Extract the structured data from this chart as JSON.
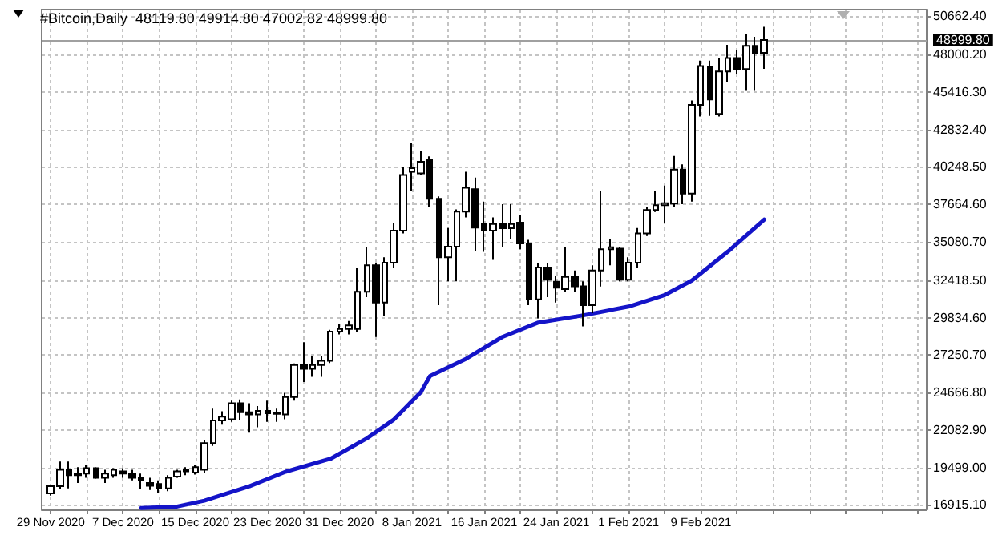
{
  "chart_data": {
    "type": "candlestick",
    "title": "#Bitcoin,Daily  48119.80 49914.80 47002.82 48999.80",
    "xlim": [
      "2020-11-28",
      "2021-03-06"
    ],
    "xticks": [
      {
        "value": "2020-11-29",
        "label": "29 Nov 2020"
      },
      {
        "value": "2020-12-03",
        "label": null
      },
      {
        "value": "2020-12-07",
        "label": "7 Dec 2020"
      },
      {
        "value": "2020-12-11",
        "label": null
      },
      {
        "value": "2020-12-15",
        "label": "15 Dec 2020"
      },
      {
        "value": "2020-12-19",
        "label": null
      },
      {
        "value": "2020-12-23",
        "label": "23 Dec 2020"
      },
      {
        "value": "2020-12-27",
        "label": null
      },
      {
        "value": "2020-12-31",
        "label": "31 Dec 2020"
      },
      {
        "value": "2021-01-04",
        "label": null
      },
      {
        "value": "2021-01-08",
        "label": "8 Jan 2021"
      },
      {
        "value": "2021-01-12",
        "label": null
      },
      {
        "value": "2021-01-16",
        "label": "16 Jan 2021"
      },
      {
        "value": "2021-01-20",
        "label": null
      },
      {
        "value": "2021-01-24",
        "label": "24 Jan 2021"
      },
      {
        "value": "2021-01-28",
        "label": null
      },
      {
        "value": "2021-02-01",
        "label": "1 Feb 2021"
      },
      {
        "value": "2021-02-05",
        "label": null
      },
      {
        "value": "2021-02-09",
        "label": "9 Feb 2021"
      },
      {
        "value": "2021-02-13",
        "label": null
      },
      {
        "value": "2021-02-17",
        "label": null
      },
      {
        "value": "2021-02-21",
        "label": null
      },
      {
        "value": "2021-02-25",
        "label": null
      },
      {
        "value": "2021-03-01",
        "label": null
      },
      {
        "value": "2021-03-05",
        "label": null
      }
    ],
    "ylim": [
      16600,
      51100
    ],
    "yticks": [
      {
        "value": 16915.1,
        "label": "16915.10"
      },
      {
        "value": 19499,
        "label": "19499.00"
      },
      {
        "value": 22082.9,
        "label": "22082.90"
      },
      {
        "value": 24666.8,
        "label": "24666.80"
      },
      {
        "value": 27250.7,
        "label": "27250.70"
      },
      {
        "value": 29834.6,
        "label": "29834.60"
      },
      {
        "value": 32418.5,
        "label": "32418.50"
      },
      {
        "value": 35080.7,
        "label": "35080.70"
      },
      {
        "value": 37664.6,
        "label": "37664.60"
      },
      {
        "value": 40248.5,
        "label": "40248.50"
      },
      {
        "value": 42832.4,
        "label": "42832.40"
      },
      {
        "value": 45416.3,
        "label": "45416.30"
      },
      {
        "value": 48000.2,
        "label": "48000.20"
      },
      {
        "value": 50662.4,
        "label": "50662.40"
      }
    ],
    "grid": true,
    "ref_lines": [
      {
        "axis": "y",
        "value": 48999.8,
        "label": "48999.80",
        "color": "#a0a0a0"
      }
    ],
    "series": [
      {
        "type": "line",
        "color": "#1414c8",
        "x": [
          "2020-12-09",
          "2020-12-13",
          "2020-12-16",
          "2020-12-21",
          "2020-12-25",
          "2020-12-30",
          "2021-01-03",
          "2021-01-06",
          "2021-01-09",
          "2021-01-10",
          "2021-01-14",
          "2021-01-18",
          "2021-01-22",
          "2021-01-27",
          "2021-02-01",
          "2021-02-05",
          "2021-02-08",
          "2021-02-12",
          "2021-02-16"
        ],
        "values": [
          16700,
          16800,
          17200,
          18200,
          19200,
          20100,
          21500,
          22800,
          24700,
          25800,
          27000,
          28500,
          29500,
          30000,
          30600,
          31400,
          32400,
          34400,
          36600
        ]
      },
      {
        "type": "candlestick",
        "color": "#000000",
        "x": [
          "2020-11-29",
          "2020-11-30",
          "2020-12-01",
          "2020-12-02",
          "2020-12-03",
          "2020-12-04",
          "2020-12-05",
          "2020-12-06",
          "2020-12-07",
          "2020-12-08",
          "2020-12-09",
          "2020-12-10",
          "2020-12-11",
          "2020-12-12",
          "2020-12-13",
          "2020-12-14",
          "2020-12-15",
          "2020-12-16",
          "2020-12-17",
          "2020-12-18",
          "2020-12-19",
          "2020-12-20",
          "2020-12-21",
          "2020-12-22",
          "2020-12-23",
          "2020-12-24",
          "2020-12-25",
          "2020-12-26",
          "2020-12-27",
          "2020-12-28",
          "2020-12-29",
          "2020-12-30",
          "2020-12-31",
          "2021-01-01",
          "2021-01-02",
          "2021-01-03",
          "2021-01-04",
          "2021-01-05",
          "2021-01-06",
          "2021-01-07",
          "2021-01-08",
          "2021-01-09",
          "2021-01-10",
          "2021-01-11",
          "2021-01-12",
          "2021-01-13",
          "2021-01-14",
          "2021-01-15",
          "2021-01-16",
          "2021-01-17",
          "2021-01-18",
          "2021-01-19",
          "2021-01-20",
          "2021-01-21",
          "2021-01-22",
          "2021-01-23",
          "2021-01-24",
          "2021-01-25",
          "2021-01-26",
          "2021-01-27",
          "2021-01-28",
          "2021-01-29",
          "2021-01-30",
          "2021-01-31",
          "2021-02-01",
          "2021-02-02",
          "2021-02-03",
          "2021-02-04",
          "2021-02-05",
          "2021-02-06",
          "2021-02-07",
          "2021-02-08",
          "2021-02-09",
          "2021-02-10",
          "2021-02-11",
          "2021-02-12",
          "2021-02-13",
          "2021-02-14",
          "2021-02-15",
          "2021-02-16"
        ],
        "ohlc": [
          [
            17700,
            18300,
            17550,
            18200
          ],
          [
            18200,
            19900,
            18000,
            19330
          ],
          [
            19330,
            19900,
            18050,
            18970
          ],
          [
            19050,
            19520,
            18420,
            18970
          ],
          [
            19080,
            19700,
            18785,
            19450
          ],
          [
            19450,
            19520,
            18710,
            18785
          ],
          [
            18785,
            19335,
            18420,
            19080
          ],
          [
            18970,
            19450,
            18785,
            19330
          ],
          [
            19220,
            19450,
            18785,
            19080
          ],
          [
            19080,
            19335,
            18600,
            18785
          ],
          [
            18785,
            19080,
            17980,
            18600
          ],
          [
            18420,
            18785,
            17940,
            18235
          ],
          [
            18350,
            18600,
            17765,
            18050
          ],
          [
            18050,
            18970,
            17860,
            18785
          ],
          [
            18860,
            19330,
            18785,
            19220
          ],
          [
            19220,
            19520,
            18970,
            19330
          ],
          [
            19150,
            19700,
            19000,
            19520
          ],
          [
            19335,
            21350,
            19150,
            21170
          ],
          [
            21170,
            23550,
            20985,
            22740
          ],
          [
            22740,
            23370,
            22450,
            23000
          ],
          [
            22820,
            24100,
            22635,
            23920
          ],
          [
            23920,
            24190,
            22735,
            23300
          ],
          [
            23300,
            23920,
            21900,
            23150
          ],
          [
            23150,
            23735,
            22270,
            23400
          ],
          [
            23400,
            24100,
            22635,
            23230
          ],
          [
            23230,
            23550,
            22635,
            23200
          ],
          [
            23150,
            24650,
            22820,
            24360
          ],
          [
            24360,
            26670,
            24100,
            26560
          ],
          [
            26560,
            28135,
            25385,
            26300
          ],
          [
            26300,
            27220,
            25750,
            26560
          ],
          [
            26560,
            27220,
            25750,
            26860
          ],
          [
            26850,
            29000,
            26700,
            28870
          ],
          [
            28870,
            29420,
            28685,
            29050
          ],
          [
            29050,
            29600,
            28685,
            29300
          ],
          [
            29050,
            33270,
            28870,
            31620
          ],
          [
            31620,
            34735,
            31250,
            33450
          ],
          [
            33450,
            33635,
            28500,
            30885
          ],
          [
            30885,
            34000,
            29970,
            33635
          ],
          [
            33635,
            36385,
            33270,
            35835
          ],
          [
            35835,
            40235,
            35650,
            39685
          ],
          [
            39900,
            41885,
            38585,
            40150
          ],
          [
            39800,
            41335,
            39685,
            40600
          ],
          [
            40700,
            40970,
            37485,
            38035
          ],
          [
            38035,
            38200,
            30700,
            34000
          ],
          [
            34000,
            36020,
            32350,
            34735
          ],
          [
            34735,
            37300,
            32350,
            37150
          ],
          [
            37150,
            39900,
            36750,
            38800
          ],
          [
            38700,
            39500,
            34400,
            36050
          ],
          [
            36300,
            37850,
            34370,
            35835
          ],
          [
            35835,
            36750,
            33820,
            36300
          ],
          [
            36300,
            37670,
            34735,
            36000
          ],
          [
            36000,
            37670,
            35285,
            36300
          ],
          [
            36400,
            36935,
            34550,
            34950
          ],
          [
            34950,
            35200,
            30700,
            31100
          ],
          [
            31100,
            33635,
            29785,
            33300
          ],
          [
            33300,
            33635,
            31250,
            32450
          ],
          [
            32315,
            32720,
            30885,
            31900
          ],
          [
            31800,
            34735,
            31620,
            32650
          ],
          [
            32650,
            33085,
            31620,
            32000
          ],
          [
            32000,
            32350,
            29235,
            30700
          ],
          [
            30700,
            33450,
            30150,
            33085
          ],
          [
            33085,
            38585,
            31985,
            34550
          ],
          [
            34550,
            35285,
            33450,
            34700
          ],
          [
            34600,
            34735,
            32350,
            32450
          ],
          [
            32450,
            34000,
            32350,
            33635
          ],
          [
            33635,
            36020,
            33270,
            35650
          ],
          [
            35650,
            37485,
            35470,
            37265
          ],
          [
            37265,
            38585,
            37120,
            37600
          ],
          [
            37600,
            38950,
            36385,
            37740
          ],
          [
            37700,
            41000,
            37485,
            40050
          ],
          [
            40050,
            40420,
            37670,
            38400
          ],
          [
            38400,
            44820,
            37850,
            44525
          ],
          [
            44525,
            47570,
            43720,
            47200
          ],
          [
            47165,
            47570,
            43755,
            44890
          ],
          [
            43900,
            47750,
            43720,
            46835
          ],
          [
            46835,
            48670,
            46100,
            47750
          ],
          [
            47750,
            48300,
            46650,
            47000
          ],
          [
            47000,
            49400,
            45550,
            48600
          ],
          [
            48600,
            49220,
            45550,
            48100
          ],
          [
            48119.8,
            49914.8,
            47002.82,
            48999.8
          ]
        ]
      }
    ]
  }
}
